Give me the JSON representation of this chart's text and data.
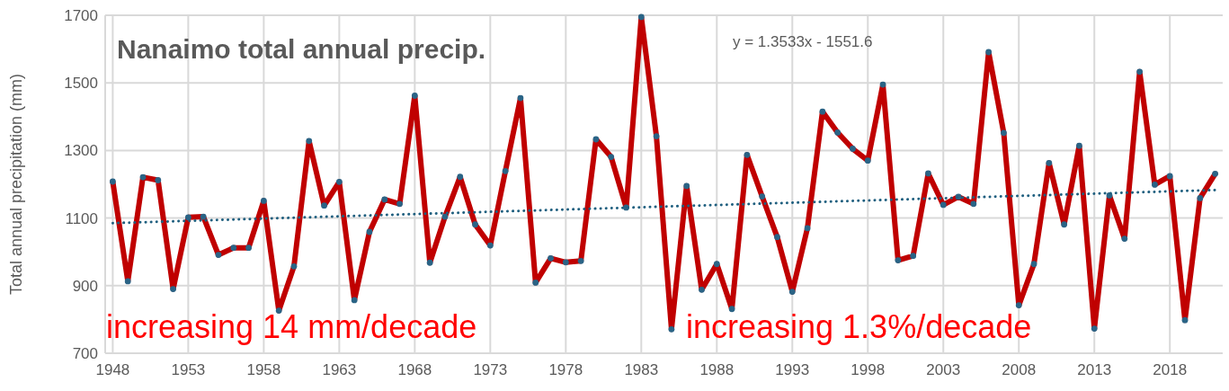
{
  "chart_data": {
    "type": "line",
    "title": "Nanaimo total annual precip.",
    "ylabel": "Total annual precipitation (mm)",
    "x": [
      1948,
      1949,
      1950,
      1951,
      1952,
      1953,
      1954,
      1955,
      1956,
      1957,
      1958,
      1959,
      1960,
      1961,
      1962,
      1963,
      1964,
      1965,
      1966,
      1967,
      1968,
      1969,
      1970,
      1971,
      1972,
      1973,
      1974,
      1975,
      1976,
      1977,
      1978,
      1979,
      1980,
      1981,
      1982,
      1983,
      1984,
      1985,
      1986,
      1987,
      1988,
      1989,
      1990,
      1991,
      1992,
      1993,
      1994,
      1995,
      1996,
      1997,
      1998,
      1999,
      2000,
      2001,
      2002,
      2003,
      2004,
      2005,
      2006,
      2007,
      2008,
      2009,
      2010,
      2011,
      2012,
      2013,
      2014,
      2015,
      2016,
      2017,
      2018,
      2019,
      2020,
      2021
    ],
    "series": [
      {
        "color": "#c00000",
        "marker": "circle",
        "line_style": "solid",
        "values": [
          1208,
          913,
          1221,
          1212,
          890,
          1102,
          1104,
          991,
          1012,
          1012,
          1151,
          826,
          957,
          1328,
          1137,
          1207,
          857,
          1059,
          1155,
          1142,
          1462,
          968,
          1104,
          1222,
          1081,
          1019,
          1239,
          1455,
          909,
          981,
          969,
          973,
          1333,
          1281,
          1131,
          1695,
          1342,
          771,
          1195,
          888,
          964,
          831,
          1287,
          1164,
          1044,
          882,
          1070,
          1415,
          1353,
          1305,
          1270,
          1495,
          975,
          988,
          1232,
          1139,
          1163,
          1142,
          1591,
          1352,
          842,
          964,
          1263,
          1081,
          1314,
          773,
          1167,
          1039,
          1533,
          1199,
          1224,
          798,
          1159,
          1231
        ]
      },
      {
        "color": "#1f5f7f",
        "marker": "none",
        "line_style": "dotted",
        "x": [
          1948,
          2021
        ],
        "values": [
          1085,
          1183
        ]
      }
    ],
    "xlim": [
      1947.5,
      2021.5
    ],
    "xticks": [
      1948,
      1953,
      1958,
      1963,
      1968,
      1973,
      1978,
      1983,
      1988,
      1993,
      1998,
      2003,
      2008,
      2013,
      2018
    ],
    "ylim": [
      700,
      1700
    ],
    "yticks": [
      700,
      900,
      1100,
      1300,
      1500,
      1700
    ],
    "grid": true,
    "annotations": [
      "y = 1.3533x - 1551.6",
      "increasing 14 mm/decade",
      "increasing 1.3%/decade"
    ]
  }
}
